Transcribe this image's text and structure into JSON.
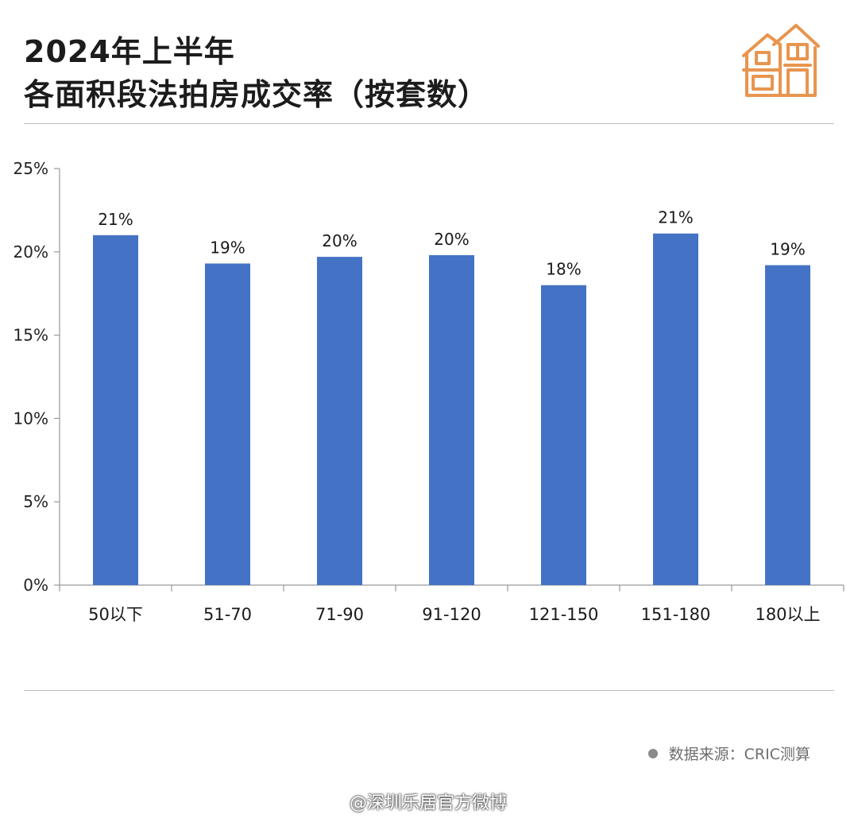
{
  "header": {
    "title_line1": "2024年上半年",
    "title_line2": "各面积段法拍房成交率（按套数）",
    "icon": "house-icon"
  },
  "chart_data": {
    "type": "bar",
    "categories": [
      "50以下",
      "51-70",
      "71-90",
      "91-120",
      "121-150",
      "151-180",
      "180以上"
    ],
    "values": [
      21.0,
      19.3,
      19.7,
      19.8,
      18.0,
      21.1,
      19.2
    ],
    "data_labels": [
      "21%",
      "19%",
      "20%",
      "20%",
      "18%",
      "21%",
      "19%"
    ],
    "ylim": [
      0,
      25
    ],
    "yticks": [
      0,
      5,
      10,
      15,
      20,
      25
    ],
    "ytick_labels": [
      "0%",
      "5%",
      "10%",
      "15%",
      "20%",
      "25%"
    ],
    "bar_color": "#4472c4",
    "grid": false,
    "legend": "none"
  },
  "footer": {
    "source": "数据来源：CRIC测算",
    "weibo_watermark": "@深圳乐居官方微博"
  },
  "colors": {
    "accent_icon": "#e8954f",
    "bar": "#4472c4",
    "rule": "#bdbdbd"
  }
}
